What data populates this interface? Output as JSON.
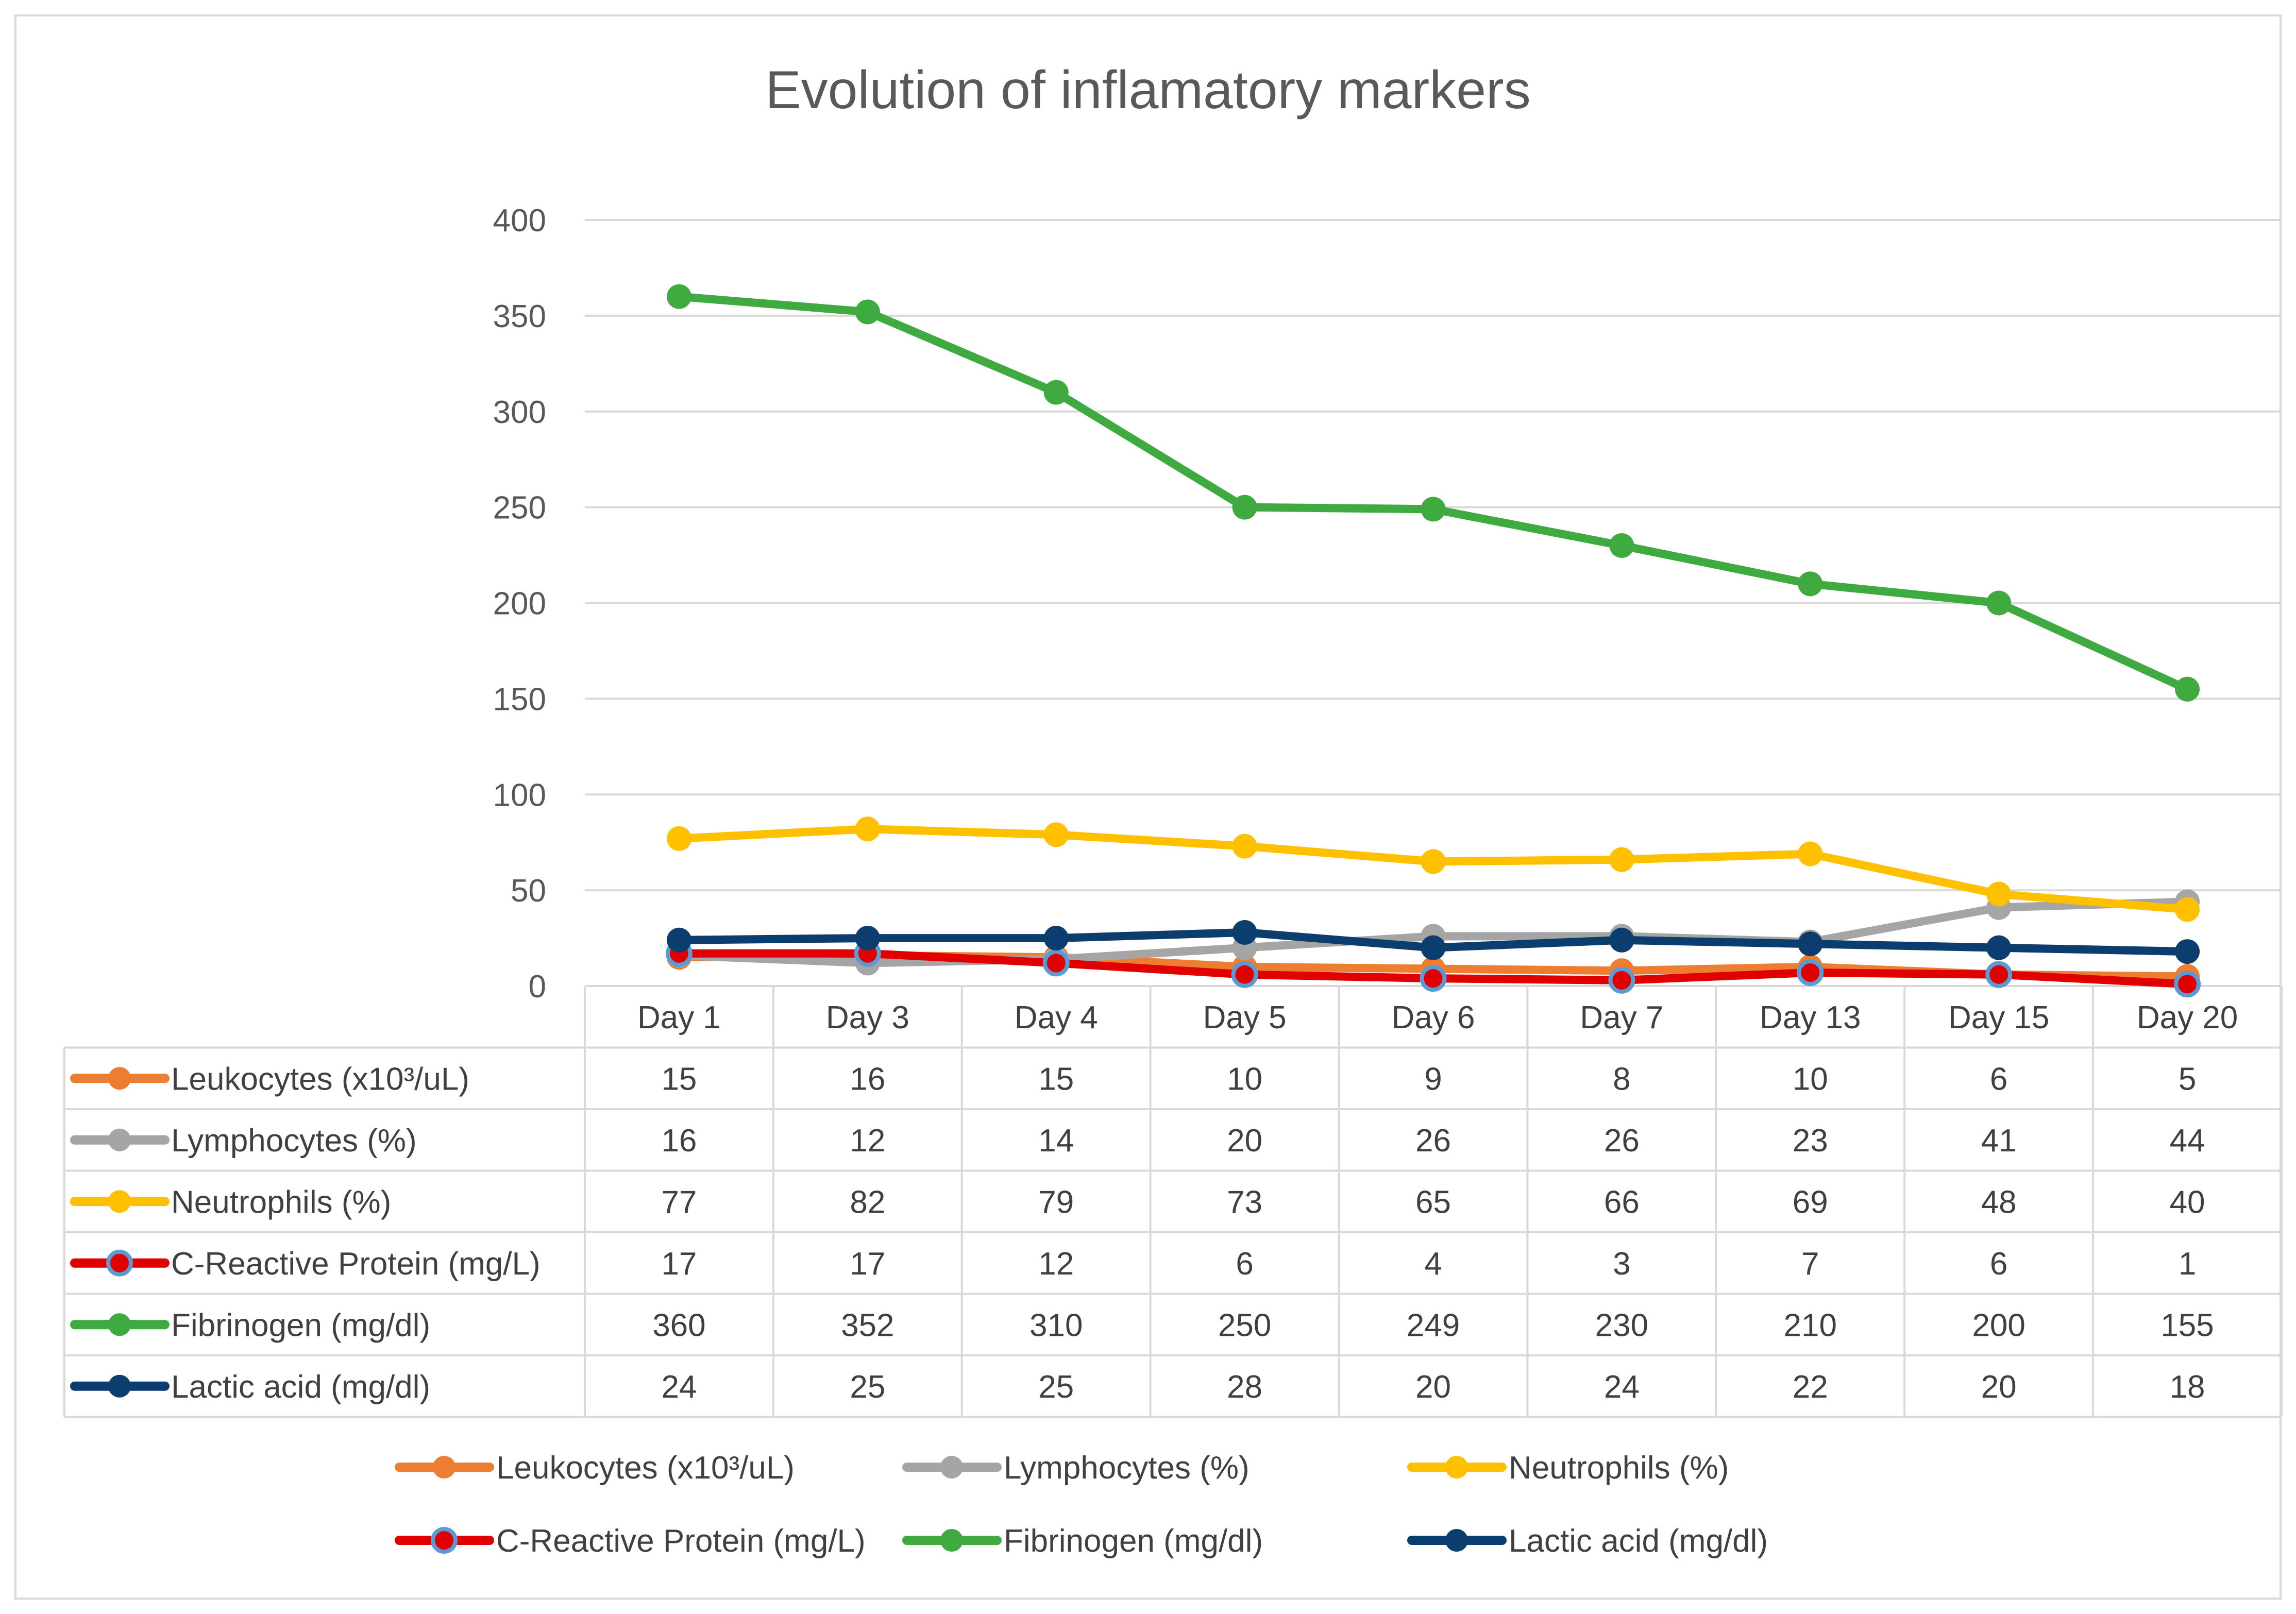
{
  "chart_data": {
    "type": "line",
    "title": "Evolution of inflamatory markers",
    "categories": [
      "Day 1",
      "Day 3",
      "Day 4",
      "Day 5",
      "Day 6",
      "Day 7",
      "Day 13",
      "Day 15",
      "Day 20"
    ],
    "ylim": [
      0,
      400
    ],
    "yticks": [
      "0",
      "50",
      "100",
      "150",
      "200",
      "250",
      "300",
      "350",
      "400"
    ],
    "grid": true,
    "legend_position": "bottom",
    "data_table": true,
    "series": [
      {
        "name": "Leukocytes (x10³/uL)",
        "color": "#ED7D31",
        "marker": "circle",
        "values": [
          15,
          16,
          15,
          10,
          9,
          8,
          10,
          6,
          5
        ]
      },
      {
        "name": "Lymphocytes (%)",
        "color": "#A5A5A5",
        "marker": "circle",
        "values": [
          16,
          12,
          14,
          20,
          26,
          26,
          23,
          41,
          44
        ]
      },
      {
        "name": "Neutrophils (%)",
        "color": "#FFC000",
        "marker": "circle",
        "values": [
          77,
          82,
          79,
          73,
          65,
          66,
          69,
          48,
          40
        ]
      },
      {
        "name": "C-Reactive Protein (mg/L)",
        "color": "#E00000",
        "marker_edge": "#5B9BD5",
        "marker": "circle",
        "values": [
          17,
          17,
          12,
          6,
          4,
          3,
          7,
          6,
          1
        ]
      },
      {
        "name": "Fibrinogen (mg/dl)",
        "color": "#3FAA3F",
        "marker": "circle",
        "values": [
          360,
          352,
          310,
          250,
          249,
          230,
          210,
          200,
          155
        ]
      },
      {
        "name": "Lactic acid (mg/dl)",
        "color": "#0B3E6F",
        "marker": "circle",
        "values": [
          24,
          25,
          25,
          28,
          20,
          24,
          22,
          20,
          18
        ]
      }
    ]
  }
}
